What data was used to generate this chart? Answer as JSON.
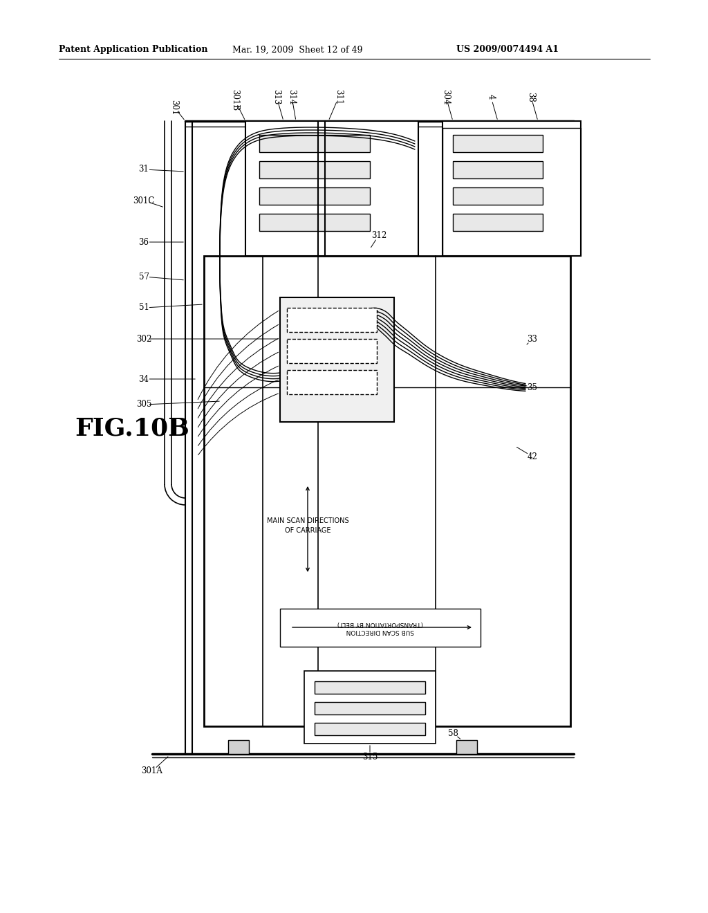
{
  "header_left": "Patent Application Publication",
  "header_mid": "Mar. 19, 2009  Sheet 12 of 49",
  "header_right": "US 2009/0074494 A1",
  "fig_label": "FIG.10B",
  "background_color": "#ffffff",
  "line_color": "#000000"
}
